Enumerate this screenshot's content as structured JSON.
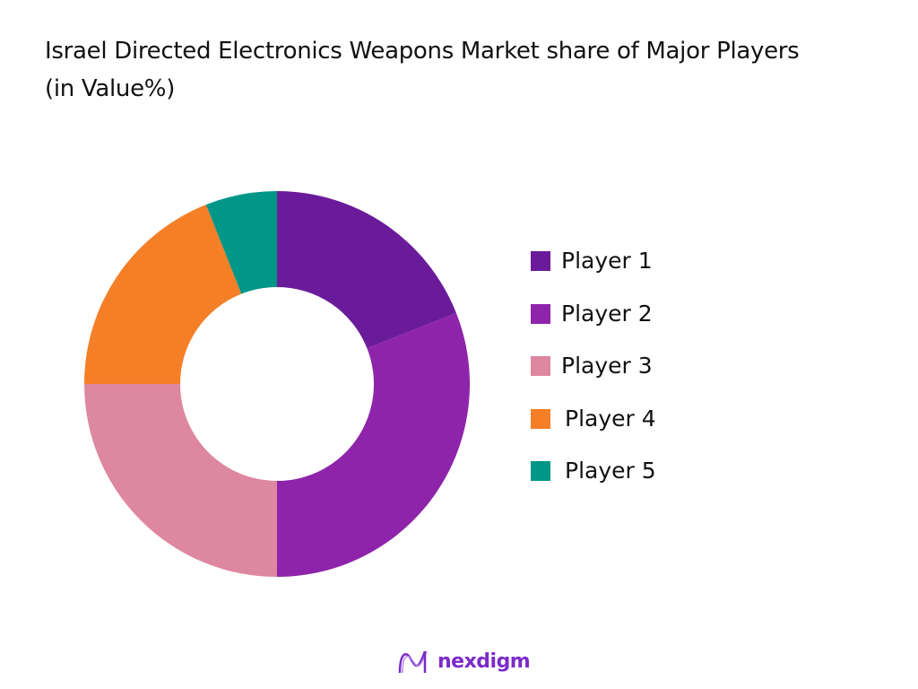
{
  "title": "Israel Directed Electronics Weapons Market share of Major Players (in Value%)",
  "chart_data": {
    "type": "pie",
    "variant": "donut",
    "title": "Israel Directed Electronics Weapons Market share of Major Players (in Value%)",
    "categories": [
      "Player 1",
      "Player 2",
      "Player 3",
      "Player 4",
      "Player 5"
    ],
    "values": [
      19,
      31,
      25,
      19,
      6
    ],
    "colors": [
      "#6a1b9a",
      "#8e24aa",
      "#de87a0",
      "#f47f26",
      "#009688"
    ],
    "start_angle": "top, clockwise",
    "legend_position": "right",
    "grid": false
  },
  "legend": [
    {
      "label": "Player 1",
      "color": "#6a1b9a"
    },
    {
      "label": "Player 2",
      "color": "#8e24aa"
    },
    {
      "label": "Player 3",
      "color": "#de87a0"
    },
    {
      "label": "Player 4",
      "color": "#f47f26"
    },
    {
      "label": "Player 5",
      "color": "#009688"
    }
  ],
  "logo": {
    "text": "nexdigm"
  }
}
